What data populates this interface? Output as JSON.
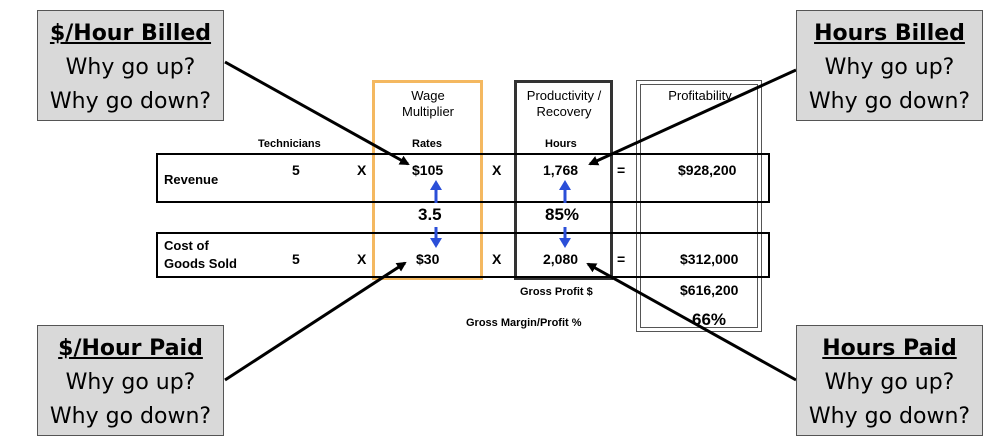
{
  "callouts": {
    "top_left": {
      "title": "$/Hour Billed",
      "line1": "Why go up?",
      "line2": "Why go down?"
    },
    "top_right": {
      "title": "Hours Billed",
      "line1": "Why go up?",
      "line2": "Why go down?"
    },
    "bottom_left": {
      "title": "$/Hour Paid",
      "line1": "Why go up?",
      "line2": "Why go down?"
    },
    "bottom_right": {
      "title": "Hours Paid",
      "line1": "Why go up?",
      "line2": "Why go down?"
    }
  },
  "columns": {
    "wage_multiplier": "Wage Multiplier",
    "productivity": "Productivity / Recovery",
    "profitability": "Profitability"
  },
  "subheaders": {
    "technicians": "Technicians",
    "rates": "Rates",
    "hours": "Hours"
  },
  "revenue": {
    "label": "Revenue",
    "technicians": "5",
    "op1": "X",
    "rate": "$105",
    "op2": "X",
    "hours": "1,768",
    "eq": "=",
    "result": "$928,200"
  },
  "middle": {
    "multiplier": "3.5",
    "productivity": "85%"
  },
  "cogs": {
    "label_line1": "Cost of",
    "label_line2": "Goods Sold",
    "technicians": "5",
    "op1": "X",
    "rate": "$30",
    "op2": "X",
    "hours": "2,080",
    "eq": "=",
    "result": "$312,000"
  },
  "gross_profit": {
    "label": "Gross Profit $",
    "value": "$616,200"
  },
  "gross_margin": {
    "label": "Gross Margin/Profit %",
    "value": "66%"
  },
  "colors": {
    "wage_border": "#f4b860",
    "arrow_blue": "#2b4fd8",
    "callout_bg": "#d9d9d9"
  }
}
